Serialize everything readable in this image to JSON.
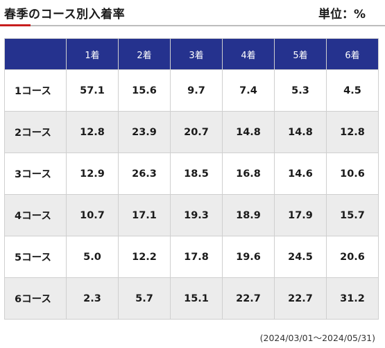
{
  "header": {
    "title": "春季のコース別入着率",
    "unit": "単位：%"
  },
  "table": {
    "columns": [
      "",
      "1着",
      "2着",
      "3着",
      "4着",
      "5着",
      "6着"
    ],
    "rows": [
      {
        "label": "1コース",
        "values": [
          "57.1",
          "15.6",
          "9.7",
          "7.4",
          "5.3",
          "4.5"
        ]
      },
      {
        "label": "2コース",
        "values": [
          "12.8",
          "23.9",
          "20.7",
          "14.8",
          "14.8",
          "12.8"
        ]
      },
      {
        "label": "3コース",
        "values": [
          "12.9",
          "26.3",
          "18.5",
          "16.8",
          "14.6",
          "10.6"
        ]
      },
      {
        "label": "4コース",
        "values": [
          "10.7",
          "17.1",
          "19.3",
          "18.9",
          "17.9",
          "15.7"
        ]
      },
      {
        "label": "5コース",
        "values": [
          "5.0",
          "12.2",
          "17.8",
          "19.6",
          "24.5",
          "20.6"
        ]
      },
      {
        "label": "6コース",
        "values": [
          "2.3",
          "5.7",
          "15.1",
          "22.7",
          "22.7",
          "31.2"
        ]
      }
    ]
  },
  "footer": {
    "period": "(2024/03/01〜2024/05/31)"
  },
  "colors": {
    "header_bg": "#25328e",
    "accent_red": "#c81e1e",
    "alt_row_bg": "#ececec"
  }
}
